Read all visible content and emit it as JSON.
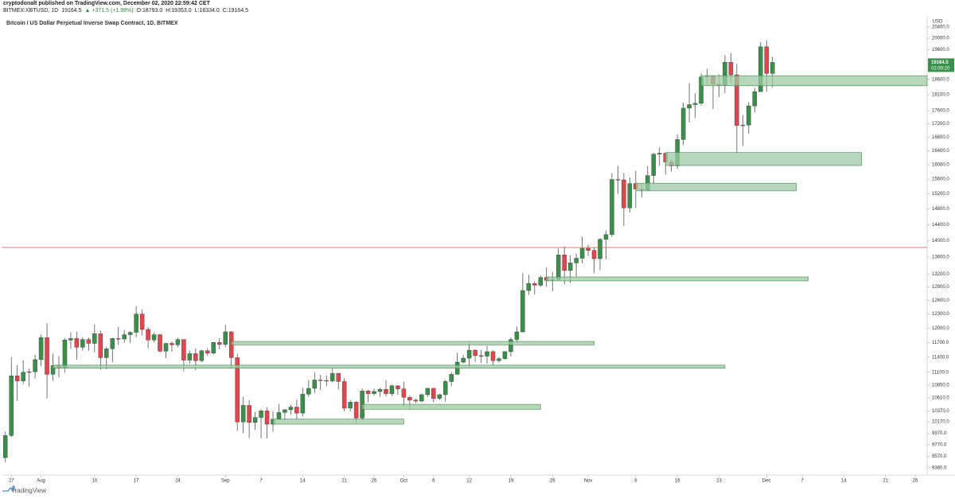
{
  "header": {
    "publisher_line": "cryptodonalt published on TradingView.com, December 02, 2020 22:59:42 CET",
    "symbol": "BITMEX:XBTUSD, 1D",
    "change": "▲ +371.5 (+1.98%)",
    "ohlc": [
      "O:18793.0",
      "H:19353.0",
      "L:18334.0",
      "C:19164.5"
    ]
  },
  "chart_data": {
    "type": "candlestick",
    "title": "Bitcoin / US Dollar Perpetual Inverse Swap Contract, 1D, BITMEX",
    "y_axis_label": "USD",
    "countdown": "02:00:20",
    "up_color": "#3a8f4a",
    "down_color": "#e2454c",
    "wick_color": "#3a3a3a",
    "log_scale": true,
    "xlim": [
      "2020-07-25T12:00:00Z",
      "2020-12-28T00:00:00Z"
    ],
    "ylim": [
      9260,
      20800
    ],
    "x": [
      "2020-07-26",
      "2020-07-27",
      "2020-07-28",
      "2020-07-29",
      "2020-07-30",
      "2020-07-31",
      "2020-08-01",
      "2020-08-02",
      "2020-08-03",
      "2020-08-04",
      "2020-08-05",
      "2020-08-06",
      "2020-08-07",
      "2020-08-08",
      "2020-08-09",
      "2020-08-10",
      "2020-08-11",
      "2020-08-12",
      "2020-08-13",
      "2020-08-14",
      "2020-08-15",
      "2020-08-16",
      "2020-08-17",
      "2020-08-18",
      "2020-08-19",
      "2020-08-20",
      "2020-08-21",
      "2020-08-22",
      "2020-08-23",
      "2020-08-24",
      "2020-08-25",
      "2020-08-26",
      "2020-08-27",
      "2020-08-28",
      "2020-08-29",
      "2020-08-30",
      "2020-08-31",
      "2020-09-01",
      "2020-09-02",
      "2020-09-03",
      "2020-09-04",
      "2020-09-05",
      "2020-09-06",
      "2020-09-07",
      "2020-09-08",
      "2020-09-09",
      "2020-09-10",
      "2020-09-11",
      "2020-09-12",
      "2020-09-13",
      "2020-09-14",
      "2020-09-15",
      "2020-09-16",
      "2020-09-17",
      "2020-09-18",
      "2020-09-19",
      "2020-09-20",
      "2020-09-21",
      "2020-09-22",
      "2020-09-23",
      "2020-09-24",
      "2020-09-25",
      "2020-09-26",
      "2020-09-27",
      "2020-09-28",
      "2020-09-29",
      "2020-09-30",
      "2020-10-01",
      "2020-10-02",
      "2020-10-03",
      "2020-10-04",
      "2020-10-05",
      "2020-10-06",
      "2020-10-07",
      "2020-10-08",
      "2020-10-09",
      "2020-10-10",
      "2020-10-11",
      "2020-10-12",
      "2020-10-13",
      "2020-10-14",
      "2020-10-15",
      "2020-10-16",
      "2020-10-17",
      "2020-10-18",
      "2020-10-19",
      "2020-10-20",
      "2020-10-21",
      "2020-10-22",
      "2020-10-23",
      "2020-10-24",
      "2020-10-25",
      "2020-10-26",
      "2020-10-27",
      "2020-10-28",
      "2020-10-29",
      "2020-10-30",
      "2020-10-31",
      "2020-11-01",
      "2020-11-02",
      "2020-11-03",
      "2020-11-04",
      "2020-11-05",
      "2020-11-06",
      "2020-11-07",
      "2020-11-08",
      "2020-11-09",
      "2020-11-10",
      "2020-11-11",
      "2020-11-12",
      "2020-11-13",
      "2020-11-14",
      "2020-11-15",
      "2020-11-16",
      "2020-11-17",
      "2020-11-18",
      "2020-11-19",
      "2020-11-20",
      "2020-11-21",
      "2020-11-22",
      "2020-11-23",
      "2020-11-24",
      "2020-11-25",
      "2020-11-26",
      "2020-11-27",
      "2020-11-28",
      "2020-11-29",
      "2020-11-30",
      "2020-12-01",
      "2020-12-02"
    ],
    "open": [
      9550,
      9930,
      11030,
      10930,
      11100,
      11110,
      11350,
      11800,
      11060,
      11230,
      11190,
      11750,
      11780,
      11600,
      11760,
      11680,
      11880,
      11390,
      11570,
      11780,
      11770,
      11860,
      11910,
      12300,
      11970,
      11750,
      11860,
      11520,
      11680,
      11650,
      11760,
      11340,
      11470,
      11330,
      11530,
      11480,
      11700,
      11660,
      11920,
      11390,
      10170,
      10470,
      10160,
      10250,
      10370,
      10130,
      10220,
      10340,
      10390,
      10440,
      10330,
      10680,
      10790,
      10950,
      10940,
      10930,
      11080,
      10920,
      10420,
      10530,
      10240,
      10740,
      10690,
      10730,
      10770,
      10690,
      10840,
      10780,
      10620,
      10570,
      10550,
      10670,
      10790,
      10600,
      10670,
      10920,
      11060,
      11300,
      11380,
      11540,
      11430,
      11420,
      11510,
      11330,
      11370,
      11510,
      11760,
      11920,
      12820,
      12980,
      12940,
      13120,
      13050,
      13070,
      13650,
      13280,
      13460,
      13570,
      13810,
      13760,
      13560,
      14030,
      14150,
      15590,
      15580,
      14830,
      15480,
      15330,
      15300,
      15700,
      16300,
      16330,
      16080,
      15970,
      16730,
      17680,
      17790,
      17830,
      18680,
      18720,
      18440,
      18390,
      19170,
      18750,
      17150,
      17160,
      17750,
      18200,
      19700,
      18793
    ],
    "high": [
      10000,
      11400,
      11240,
      11340,
      11170,
      11450,
      11860,
      12100,
      11480,
      11420,
      11790,
      11910,
      11920,
      11810,
      11800,
      12080,
      11950,
      11610,
      11800,
      12020,
      11960,
      11930,
      12470,
      12400,
      12020,
      11900,
      11880,
      11680,
      11720,
      11800,
      11760,
      11530,
      11580,
      11550,
      11580,
      11700,
      11790,
      12070,
      11940,
      11470,
      10630,
      10570,
      10350,
      10400,
      10440,
      10360,
      10500,
      10400,
      10480,
      10580,
      10800,
      10950,
      11100,
      11050,
      11040,
      11180,
      11080,
      10990,
      10570,
      10550,
      10790,
      10760,
      10780,
      10800,
      10950,
      10860,
      10850,
      10920,
      10650,
      10600,
      10690,
      10800,
      10800,
      10690,
      10950,
      11100,
      11490,
      11440,
      11700,
      11560,
      11550,
      11630,
      11540,
      11400,
      11520,
      11800,
      12030,
      13220,
      13180,
      13030,
      13160,
      13350,
      13250,
      13800,
      13850,
      13640,
      13680,
      14100,
      13900,
      13840,
      14060,
      14250,
      15770,
      15970,
      15770,
      15650,
      15830,
      15470,
      15960,
      16350,
      16500,
      16330,
      16150,
      16880,
      17850,
      18480,
      18150,
      18800,
      18950,
      18720,
      18770,
      19410,
      19480,
      19110,
      17460,
      17870,
      18320,
      19860,
      19930,
      19353
    ],
    "low": [
      9470,
      9900,
      10560,
      10870,
      10830,
      10980,
      11220,
      10600,
      10930,
      11000,
      11090,
      11570,
      11350,
      11530,
      11530,
      11500,
      11150,
      11160,
      11300,
      11650,
      11690,
      11690,
      11800,
      11850,
      11580,
      11700,
      11500,
      11380,
      11510,
      11600,
      11120,
      11270,
      11140,
      11300,
      11430,
      11460,
      11560,
      11600,
      11170,
      10010,
      9970,
      9890,
      10030,
      9880,
      9880,
      10000,
      10200,
      10200,
      10300,
      10210,
      10270,
      10630,
      10700,
      10760,
      10830,
      10900,
      10770,
      10360,
      10360,
      10150,
      10200,
      10530,
      10650,
      10630,
      10640,
      10650,
      10670,
      10440,
      10400,
      10510,
      10530,
      10630,
      10530,
      10570,
      10540,
      10830,
      11050,
      11270,
      11200,
      11300,
      11280,
      11270,
      11230,
      11290,
      11350,
      11410,
      11700,
      11900,
      12720,
      12730,
      12900,
      12900,
      12800,
      13050,
      12960,
      12990,
      13130,
      13450,
      13620,
      13220,
      13290,
      13540,
      14090,
      15200,
      14360,
      14710,
      14830,
      15100,
      15290,
      15460,
      15970,
      15730,
      15810,
      15880,
      16570,
      17240,
      17370,
      17760,
      18420,
      17650,
      18030,
      18150,
      18500,
      16330,
      16540,
      16900,
      17550,
      18200,
      18200,
      18334
    ],
    "close": [
      9930,
      11030,
      10930,
      11100,
      11110,
      11350,
      11800,
      11060,
      11230,
      11190,
      11750,
      11780,
      11600,
      11760,
      11680,
      11880,
      11390,
      11570,
      11780,
      11770,
      11860,
      11910,
      12300,
      11970,
      11750,
      11860,
      11520,
      11680,
      11650,
      11760,
      11340,
      11470,
      11330,
      11530,
      11480,
      11700,
      11660,
      11920,
      11390,
      10170,
      10470,
      10160,
      10250,
      10370,
      10130,
      10220,
      10340,
      10390,
      10440,
      10330,
      10680,
      10790,
      10950,
      10940,
      10930,
      11080,
      10920,
      10420,
      10530,
      10240,
      10740,
      10690,
      10730,
      10770,
      10690,
      10840,
      10780,
      10620,
      10570,
      10550,
      10670,
      10790,
      10600,
      10670,
      10920,
      11060,
      11300,
      11380,
      11540,
      11430,
      11420,
      11510,
      11330,
      11370,
      11510,
      11760,
      11920,
      12820,
      12980,
      12940,
      13120,
      13050,
      13070,
      13650,
      13280,
      13460,
      13570,
      13810,
      13760,
      13560,
      14030,
      14150,
      15590,
      15580,
      14830,
      15480,
      15330,
      15300,
      15700,
      16300,
      16330,
      16080,
      15970,
      16730,
      17680,
      17790,
      17830,
      18680,
      18720,
      18440,
      18390,
      19170,
      18750,
      17150,
      17160,
      17750,
      18200,
      19700,
      18793,
      19164.5
    ],
    "xticks": [
      {
        "value": "2020-07-27",
        "label": "27"
      },
      {
        "value": "2020-08-01",
        "label": "Aug"
      },
      {
        "value": "2020-08-10",
        "label": "10"
      },
      {
        "value": "2020-08-17",
        "label": "17"
      },
      {
        "value": "2020-08-24",
        "label": "24"
      },
      {
        "value": "2020-09-01",
        "label": "Sep"
      },
      {
        "value": "2020-09-07",
        "label": "7"
      },
      {
        "value": "2020-09-14",
        "label": "14"
      },
      {
        "value": "2020-09-21",
        "label": "21"
      },
      {
        "value": "2020-09-26",
        "label": "26"
      },
      {
        "value": "2020-10-01",
        "label": "Oct"
      },
      {
        "value": "2020-10-06",
        "label": "6"
      },
      {
        "value": "2020-10-12",
        "label": "12"
      },
      {
        "value": "2020-10-19",
        "label": "19"
      },
      {
        "value": "2020-10-26",
        "label": "26"
      },
      {
        "value": "2020-11-01",
        "label": "Nov"
      },
      {
        "value": "2020-11-09",
        "label": "9"
      },
      {
        "value": "2020-11-16",
        "label": "16"
      },
      {
        "value": "2020-11-23",
        "label": "23"
      },
      {
        "value": "2020-12-01",
        "label": "Dec"
      },
      {
        "value": "2020-12-07",
        "label": "7"
      },
      {
        "value": "2020-12-14",
        "label": "14"
      },
      {
        "value": "2020-12-21",
        "label": "21"
      },
      {
        "value": "2020-12-26",
        "label": "26"
      }
    ],
    "yticks": [
      {
        "value": 20400,
        "label": "20400.0"
      },
      {
        "value": 20000,
        "label": "20000.0"
      },
      {
        "value": 19600,
        "label": "19600.0"
      },
      {
        "value": 18600,
        "label": "18600.0"
      },
      {
        "value": 18100,
        "label": "18100.0"
      },
      {
        "value": 17600,
        "label": "17600.0"
      },
      {
        "value": 17200,
        "label": "17200.0"
      },
      {
        "value": 16800,
        "label": "16800.0"
      },
      {
        "value": 16400,
        "label": "16400.0"
      },
      {
        "value": 16000,
        "label": "16000.0"
      },
      {
        "value": 15600,
        "label": "15600.0"
      },
      {
        "value": 15200,
        "label": "15200.0"
      },
      {
        "value": 14800,
        "label": "14800.0"
      },
      {
        "value": 14400,
        "label": "14400.0"
      },
      {
        "value": 14000,
        "label": "14000.0"
      },
      {
        "value": 13600,
        "label": "13600.0"
      },
      {
        "value": 13200,
        "label": "13200.0"
      },
      {
        "value": 12900,
        "label": "12900.0"
      },
      {
        "value": 12600,
        "label": "12600.0"
      },
      {
        "value": 12300,
        "label": "12300.0"
      },
      {
        "value": 12000,
        "label": "12000.0"
      },
      {
        "value": 11700,
        "label": "11700.0"
      },
      {
        "value": 11400,
        "label": "11400.0"
      },
      {
        "value": 11100,
        "label": "11100.0"
      },
      {
        "value": 10850,
        "label": "10850.0"
      },
      {
        "value": 10610,
        "label": "10610.0"
      },
      {
        "value": 10370,
        "label": "10370.0"
      },
      {
        "value": 10170,
        "label": "10170.0"
      },
      {
        "value": 9970,
        "label": "9970.0"
      },
      {
        "value": 9770,
        "label": "9770.0"
      },
      {
        "value": 9570,
        "label": "9570.0"
      },
      {
        "value": 9380,
        "label": "9380.0"
      }
    ],
    "zones": [
      {
        "x0": "2020-11-20",
        "x1": "2020-12-28",
        "y0": 18390,
        "y1": 18720
      },
      {
        "x0": "2020-11-14",
        "x1": "2020-12-17",
        "y0": 15980,
        "y1": 16350
      },
      {
        "x0": "2020-11-09",
        "x1": "2020-12-06",
        "y0": 15280,
        "y1": 15490
      },
      {
        "x0": "2020-10-25",
        "x1": "2020-12-08",
        "y0": 13040,
        "y1": 13130
      },
      {
        "x0": "2020-09-02",
        "x1": "2020-11-02",
        "y0": 11650,
        "y1": 11720
      },
      {
        "x0": "2020-08-03",
        "x1": "2020-11-24",
        "y0": 11180,
        "y1": 11240
      },
      {
        "x0": "2020-09-24",
        "x1": "2020-10-24",
        "y0": 10400,
        "y1": 10490
      },
      {
        "x0": "2020-09-09",
        "x1": "2020-10-01",
        "y0": 10130,
        "y1": 10220
      }
    ],
    "zone_fill": "#9ccba3",
    "zone_stroke": "#3f8a4c",
    "hline": 13830,
    "hline_color": "#e0443c"
  },
  "footer": {
    "brand": "TradingView"
  }
}
